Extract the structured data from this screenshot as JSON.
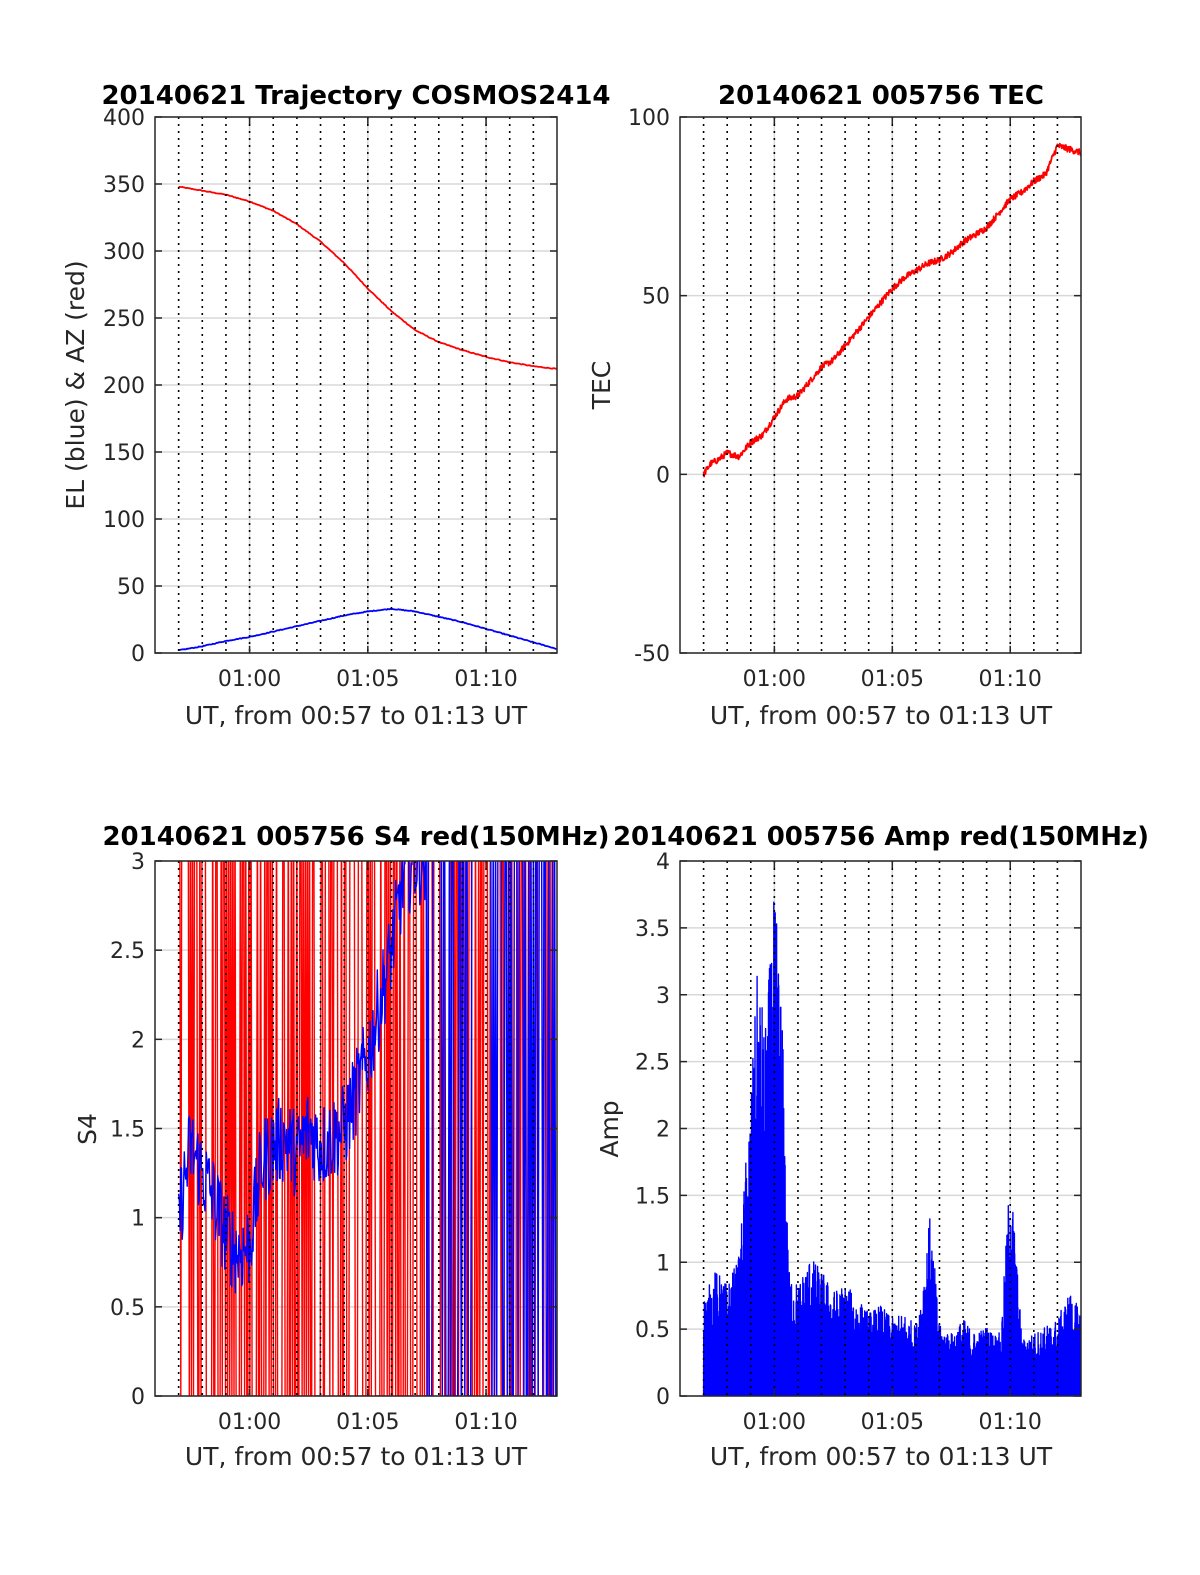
{
  "colors": {
    "el": "#0000ff",
    "az": "#ff0000",
    "grid": "#d8d8d8",
    "vline": "#000000",
    "axis": "#262626"
  },
  "chart_data": [
    {
      "id": "trajectory",
      "type": "line",
      "title": "20140621 Trajectory COSMOS2414",
      "xlabel": "UT, from 00:57 to 01:13 UT",
      "ylabel": "EL (blue) & AZ (red)",
      "x_unit": "minutes after 00:00 UT",
      "xlim": [
        56,
        73
      ],
      "ylim": [
        0,
        400
      ],
      "xticks": [
        60,
        65,
        70
      ],
      "xtick_labels": [
        "01:00",
        "01:05",
        "01:10"
      ],
      "yticks": [
        0,
        50,
        100,
        150,
        200,
        250,
        300,
        350,
        400
      ],
      "ytick_labels": [
        "0",
        "50",
        "100",
        "150",
        "200",
        "250",
        "300",
        "350",
        "400"
      ],
      "vlines": [
        57,
        58,
        59,
        60,
        61,
        62,
        63,
        64,
        65,
        66,
        67,
        68,
        69,
        70,
        71,
        72
      ],
      "series": [
        {
          "color": "#ff0000",
          "x": [
            57,
            58,
            59,
            60,
            61,
            62,
            63,
            64,
            65,
            66,
            67,
            68,
            69,
            70,
            71,
            72,
            73
          ],
          "y": [
            348,
            345,
            342,
            337,
            330,
            320,
            307,
            291,
            272,
            255,
            241,
            232,
            226,
            221,
            217,
            214,
            212
          ]
        },
        {
          "color": "#0000ff",
          "x": [
            57,
            58,
            59,
            60,
            61,
            62,
            63,
            64,
            65,
            66,
            67,
            68,
            69,
            70,
            71,
            72,
            73
          ],
          "y": [
            2,
            5,
            9,
            12,
            16,
            20,
            24,
            28,
            31,
            33,
            31,
            27,
            23,
            18,
            13,
            8,
            3
          ]
        }
      ]
    },
    {
      "id": "tec",
      "type": "line",
      "title": "20140621 005756 TEC",
      "xlabel": "UT, from 00:57 to 01:13 UT",
      "ylabel": "TEC",
      "x_unit": "minutes after 00:00 UT",
      "xlim": [
        56,
        73
      ],
      "ylim": [
        -50,
        100
      ],
      "xticks": [
        60,
        65,
        70
      ],
      "xtick_labels": [
        "01:00",
        "01:05",
        "01:10"
      ],
      "yticks": [
        -50,
        0,
        50,
        100
      ],
      "ytick_labels": [
        "-50",
        "0",
        "50",
        "100"
      ],
      "vlines": [
        57,
        58,
        59,
        60,
        61,
        62,
        63,
        64,
        65,
        66,
        67,
        68,
        69,
        70,
        71,
        72
      ],
      "series": [
        {
          "color": "#ff0000",
          "x": [
            57,
            57.3,
            57.6,
            58,
            58.5,
            59,
            59.5,
            60,
            60.5,
            61,
            61.5,
            62,
            62.5,
            63,
            63.5,
            64,
            64.5,
            65,
            65.5,
            66,
            66.5,
            67,
            67.5,
            68,
            68.5,
            69,
            69.5,
            70,
            70.5,
            71,
            71.5,
            72,
            72.5,
            73
          ],
          "y": [
            0,
            3,
            4,
            6,
            5,
            9,
            11,
            16,
            21,
            22,
            26,
            30,
            32,
            36,
            40,
            44,
            48,
            52,
            55,
            57,
            59,
            60,
            62,
            65,
            67,
            69,
            73,
            77,
            79,
            82,
            84,
            92,
            91,
            90
          ]
        }
      ]
    },
    {
      "id": "s4",
      "type": "line",
      "title": "20140621 005756 S4 red(150MHz)",
      "xlabel": "UT, from 00:57 to 01:13 UT",
      "ylabel": "S4",
      "x_unit": "minutes after 00:00 UT",
      "xlim": [
        56,
        73
      ],
      "ylim": [
        0,
        3
      ],
      "xticks": [
        60,
        65,
        70
      ],
      "xtick_labels": [
        "01:00",
        "01:05",
        "01:10"
      ],
      "yticks": [
        0,
        0.5,
        1,
        1.5,
        2,
        2.5,
        3
      ],
      "ytick_labels": [
        "0",
        "0.5",
        "1",
        "1.5",
        "2",
        "2.5",
        "3"
      ],
      "vlines": [
        57,
        58,
        59,
        60,
        61,
        62,
        63,
        64,
        65,
        66,
        67,
        68,
        69,
        70,
        71,
        72
      ],
      "series": [
        {
          "color": "#ff0000",
          "description_level": "rapid full-range oscillation 0 to 3 over 00:57–01:13"
        },
        {
          "color": "#0000ff",
          "x": [
            57,
            57.5,
            58,
            58.5,
            59,
            59.5,
            60,
            60.5,
            61,
            61.5,
            62,
            62.5,
            63,
            63.5,
            64,
            64.5,
            65,
            65.5,
            66,
            66.5,
            67,
            67.5
          ],
          "y": [
            1.0,
            1.4,
            1.25,
            1.1,
            0.9,
            0.8,
            0.85,
            1.3,
            1.4,
            1.45,
            1.35,
            1.5,
            1.4,
            1.45,
            1.5,
            1.7,
            1.9,
            2.2,
            2.5,
            2.9,
            3.0,
            3.0
          ]
        }
      ]
    },
    {
      "id": "amp",
      "type": "line",
      "title": "20140621 005756 Amp red(150MHz)",
      "xlabel": "UT, from 00:57 to 01:13 UT",
      "ylabel": "Amp",
      "x_unit": "minutes after 00:00 UT",
      "xlim": [
        56,
        73
      ],
      "ylim": [
        0,
        4
      ],
      "xticks": [
        60,
        65,
        70
      ],
      "xtick_labels": [
        "01:00",
        "01:05",
        "01:10"
      ],
      "yticks": [
        0,
        0.5,
        1,
        1.5,
        2,
        2.5,
        3,
        3.5,
        4
      ],
      "ytick_labels": [
        "0",
        "0.5",
        "1",
        "1.5",
        "2",
        "2.5",
        "3",
        "3.5",
        "4"
      ],
      "vlines": [
        57,
        58,
        59,
        60,
        61,
        62,
        63,
        64,
        65,
        66,
        67,
        68,
        69,
        70,
        71,
        72
      ],
      "series": [
        {
          "color": "#0000ff",
          "x": [
            57,
            57.5,
            58,
            58.5,
            59,
            59.3,
            59.6,
            60,
            60.3,
            60.6,
            61,
            61.5,
            62,
            62.5,
            63,
            63.5,
            64,
            64.5,
            65,
            65.5,
            66,
            66.3,
            66.6,
            67,
            67.5,
            68,
            68.5,
            69,
            69.3,
            69.6,
            70,
            70.5,
            71,
            71.5,
            72,
            72.5,
            73
          ],
          "y": [
            0.7,
            0.9,
            0.8,
            1.0,
            2.2,
            3.1,
            2.6,
            3.6,
            2.9,
            0.9,
            0.8,
            1.0,
            0.9,
            0.75,
            0.8,
            0.7,
            0.6,
            0.65,
            0.55,
            0.6,
            0.5,
            0.85,
            1.3,
            0.5,
            0.45,
            0.55,
            0.45,
            0.5,
            0.45,
            0.45,
            1.65,
            0.4,
            0.45,
            0.5,
            0.55,
            0.75,
            0.6
          ]
        }
      ]
    }
  ]
}
